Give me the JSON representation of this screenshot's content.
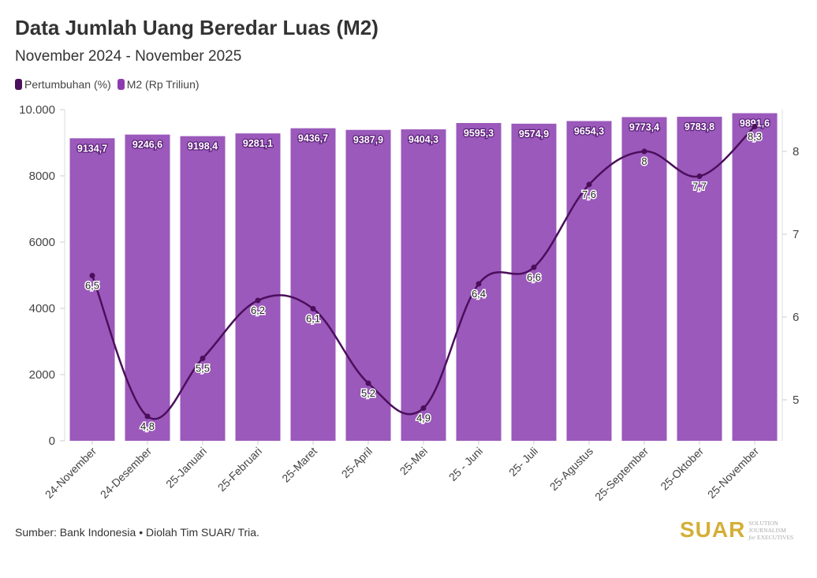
{
  "title": "Data Jumlah Uang Beredar Luas (M2)",
  "subtitle": "November 2024 - November 2025",
  "source": "Sumber: Bank Indonesia • Diolah Tim SUAR/ Tria.",
  "logo": {
    "name": "SUAR",
    "tag1": "SOLUTION JOURNALISM",
    "tag2": "for EXECUTIVES"
  },
  "chart_data": {
    "type": "bar",
    "title": "Data Jumlah Uang Beredar Luas (M2)",
    "categories": [
      "24-November",
      "24-Desember",
      "25-Januari",
      "25-Februari",
      "25-Maret",
      "25-April",
      "25-Mei",
      "25 - Juni",
      "25- Juli",
      "25-Agustus",
      "25-September",
      "25-Oktober",
      "25-November"
    ],
    "series": [
      {
        "name": "M2 (Rp Triliun)",
        "type": "bar",
        "axis": "left",
        "color": "#9b59bb",
        "values": [
          9134.7,
          9246.6,
          9198.4,
          9281.1,
          9436.7,
          9387.9,
          9404.3,
          9595.3,
          9574.9,
          9654.3,
          9773.4,
          9783.8,
          9891.6
        ],
        "labels": [
          "9134,7",
          "9246,6",
          "9198,4",
          "9281,1",
          "9436,7",
          "9387,9",
          "9404,3",
          "9595,3",
          "9574,9",
          "9654,3",
          "9773,4",
          "9783,8",
          "9891,6"
        ]
      },
      {
        "name": "Pertumbuhan (%)",
        "type": "line",
        "axis": "right",
        "color": "#4b0f5c",
        "values": [
          6.5,
          4.8,
          5.5,
          6.2,
          6.1,
          5.2,
          4.9,
          6.4,
          6.6,
          7.6,
          8,
          7.7,
          8.3
        ],
        "labels": [
          "6,5",
          "4,8",
          "5,5",
          "6,2",
          "6,1",
          "5,2",
          "4,9",
          "6,4",
          "6,6",
          "7,6",
          "8",
          "7,7",
          "8,3"
        ]
      }
    ],
    "y_left": {
      "ylim": [
        0,
        10000
      ],
      "ticks": [
        0,
        2000,
        4000,
        6000,
        8000,
        10000
      ],
      "tick_labels": [
        "0",
        "2000",
        "4000",
        "6000",
        "8000",
        "10.000"
      ]
    },
    "y_right": {
      "ylim": [
        4.5,
        8.5
      ],
      "ticks": [
        5,
        6,
        7,
        8
      ],
      "tick_labels": [
        "5",
        "6",
        "7",
        "8"
      ]
    },
    "legend": {
      "position": "top-left",
      "entries": [
        "Pertumbuhan (%)",
        "M2 (Rp Triliun)"
      ]
    },
    "grid": false
  }
}
